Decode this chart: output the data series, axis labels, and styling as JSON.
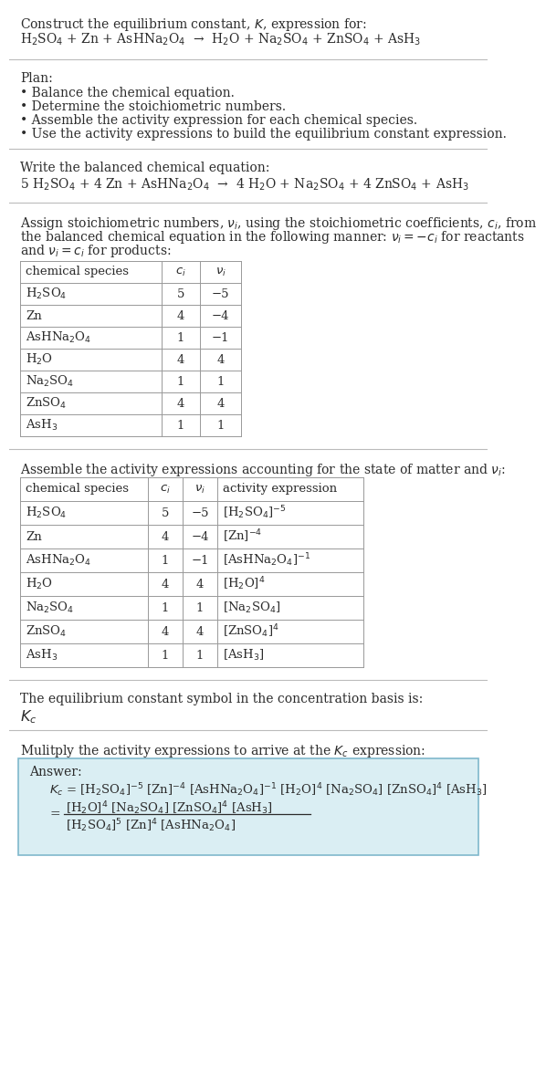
{
  "bg_color": "#ffffff",
  "text_color": "#2b2b2b",
  "table_border_color": "#999999",
  "sep_line_color": "#bbbbbb",
  "answer_box_bg": "#daeef3",
  "answer_box_border": "#7fb8cc",
  "title_line1": "Construct the equilibrium constant, $K$, expression for:",
  "title_chem": "H$_2$SO$_4$ + Zn + AsHNa$_2$O$_4$  →  H$_2$O + Na$_2$SO$_4$ + ZnSO$_4$ + AsH$_3$",
  "plan_header": "Plan:",
  "plan_items": [
    "• Balance the chemical equation.",
    "• Determine the stoichiometric numbers.",
    "• Assemble the activity expression for each chemical species.",
    "• Use the activity expressions to build the equilibrium constant expression."
  ],
  "balanced_header": "Write the balanced chemical equation:",
  "balanced_chem": "5 H$_2$SO$_4$ + 4 Zn + AsHNa$_2$O$_4$  →  4 H$_2$O + Na$_2$SO$_4$ + 4 ZnSO$_4$ + AsH$_3$",
  "stoich_header_lines": [
    "Assign stoichiometric numbers, $\\nu_i$, using the stoichiometric coefficients, $c_i$, from",
    "the balanced chemical equation in the following manner: $\\nu_i = -c_i$ for reactants",
    "and $\\nu_i = c_i$ for products:"
  ],
  "table1_headers": [
    "chemical species",
    "$c_i$",
    "$\\nu_i$"
  ],
  "table1_rows": [
    [
      "H$_2$SO$_4$",
      "5",
      "−5"
    ],
    [
      "Zn",
      "4",
      "−4"
    ],
    [
      "AsHNa$_2$O$_4$",
      "1",
      "−1"
    ],
    [
      "H$_2$O",
      "4",
      "4"
    ],
    [
      "Na$_2$SO$_4$",
      "1",
      "1"
    ],
    [
      "ZnSO$_4$",
      "4",
      "4"
    ],
    [
      "AsH$_3$",
      "1",
      "1"
    ]
  ],
  "activity_header": "Assemble the activity expressions accounting for the state of matter and $\\nu_i$:",
  "table2_headers": [
    "chemical species",
    "$c_i$",
    "$\\nu_i$",
    "activity expression"
  ],
  "table2_rows": [
    [
      "H$_2$SO$_4$",
      "5",
      "−5",
      "[H$_2$SO$_4$]$^{-5}$"
    ],
    [
      "Zn",
      "4",
      "−4",
      "[Zn]$^{-4}$"
    ],
    [
      "AsHNa$_2$O$_4$",
      "1",
      "−1",
      "[AsHNa$_2$O$_4$]$^{-1}$"
    ],
    [
      "H$_2$O",
      "4",
      "4",
      "[H$_2$O]$^4$"
    ],
    [
      "Na$_2$SO$_4$",
      "1",
      "1",
      "[Na$_2$SO$_4$]"
    ],
    [
      "ZnSO$_4$",
      "4",
      "4",
      "[ZnSO$_4$]$^4$"
    ],
    [
      "AsH$_3$",
      "1",
      "1",
      "[AsH$_3$]"
    ]
  ],
  "kc_header": "The equilibrium constant symbol in the concentration basis is:",
  "kc_symbol": "$K_c$",
  "multiply_header": "Mulitply the activity expressions to arrive at the $K_c$ expression:",
  "answer_label": "Answer:",
  "answer_line1": "$K_c$ = [H$_2$SO$_4$]$^{-5}$ [Zn]$^{-4}$ [AsHNa$_2$O$_4$]$^{-1}$ [H$_2$O]$^4$ [Na$_2$SO$_4$] [ZnSO$_4$]$^4$ [AsH$_3$]",
  "answer_eq_sign": "=",
  "answer_num": "[H$_2$O]$^4$ [Na$_2$SO$_4$] [ZnSO$_4$]$^4$ [AsH$_3$]",
  "answer_den": "[H$_2$SO$_4$]$^5$ [Zn]$^4$ [AsHNa$_2$O$_4$]"
}
